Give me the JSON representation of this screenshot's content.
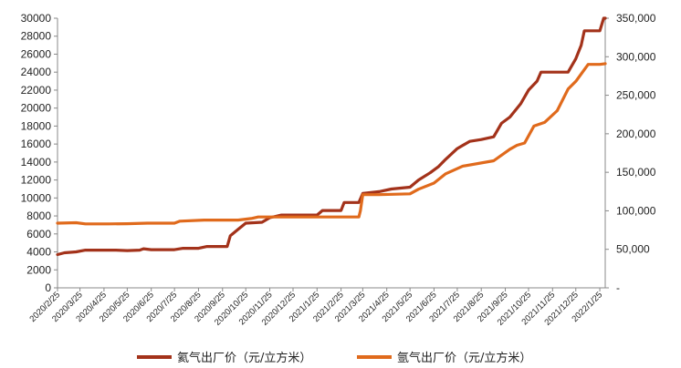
{
  "chart_data": {
    "type": "line",
    "title": "",
    "xlabel": "",
    "ylabel": "",
    "y2label": "",
    "x_start": "2020/2/25",
    "x_end": "2022/2/1",
    "x_ticks": [
      "2020/2/25",
      "2020/3/25",
      "2020/4/25",
      "2020/5/25",
      "2020/6/25",
      "2020/7/25",
      "2020/8/25",
      "2020/9/25",
      "2020/10/25",
      "2020/11/25",
      "2020/12/25",
      "2021/1/25",
      "2021/2/25",
      "2021/3/25",
      "2021/4/25",
      "2021/5/25",
      "2021/6/25",
      "2021/7/25",
      "2021/8/25",
      "2021/9/25",
      "2021/10/25",
      "2021/11/25",
      "2021/12/25",
      "2022/1/25"
    ],
    "ylim": [
      0,
      30000
    ],
    "y_ticks": [
      "0",
      "2000",
      "4000",
      "6000",
      "8000",
      "10000",
      "12000",
      "14000",
      "16000",
      "18000",
      "20000",
      "22000",
      "24000",
      "26000",
      "28000",
      "30000"
    ],
    "y2lim": [
      0,
      350000
    ],
    "y2_ticks": [
      "-",
      "50,000",
      "100,000",
      "150,000",
      "200,000",
      "250,000",
      "300,000",
      "350,000"
    ],
    "grid": false,
    "legend_position": "bottom",
    "series": [
      {
        "name": "氦气出厂价（元/立方米）",
        "axis": "left",
        "color": "#a3321a",
        "points": [
          [
            "2020/2/25",
            3700
          ],
          [
            "2020/3/5",
            3900
          ],
          [
            "2020/3/20",
            4000
          ],
          [
            "2020/4/1",
            4200
          ],
          [
            "2020/5/10",
            4200
          ],
          [
            "2020/5/25",
            4150
          ],
          [
            "2020/6/10",
            4200
          ],
          [
            "2020/6/15",
            4350
          ],
          [
            "2020/6/25",
            4250
          ],
          [
            "2020/7/25",
            4250
          ],
          [
            "2020/8/5",
            4400
          ],
          [
            "2020/8/25",
            4400
          ],
          [
            "2020/9/5",
            4600
          ],
          [
            "2020/10/1",
            4600
          ],
          [
            "2020/10/5",
            5800
          ],
          [
            "2020/10/15",
            6500
          ],
          [
            "2020/10/25",
            7200
          ],
          [
            "2020/11/15",
            7300
          ],
          [
            "2020/11/25",
            7800
          ],
          [
            "2020/12/10",
            8100
          ],
          [
            "2021/1/25",
            8100
          ],
          [
            "2021/2/1",
            8600
          ],
          [
            "2021/2/25",
            8600
          ],
          [
            "2021/3/1",
            9500
          ],
          [
            "2021/3/20",
            9500
          ],
          [
            "2021/3/25",
            10500
          ],
          [
            "2021/4/15",
            10700
          ],
          [
            "2021/5/1",
            11000
          ],
          [
            "2021/5/25",
            11200
          ],
          [
            "2021/6/5",
            12000
          ],
          [
            "2021/6/20",
            12800
          ],
          [
            "2021/7/1",
            13500
          ],
          [
            "2021/7/10",
            14300
          ],
          [
            "2021/7/25",
            15500
          ],
          [
            "2021/8/10",
            16300
          ],
          [
            "2021/8/25",
            16500
          ],
          [
            "2021/9/10",
            16800
          ],
          [
            "2021/9/20",
            18300
          ],
          [
            "2021/10/1",
            19000
          ],
          [
            "2021/10/15",
            20500
          ],
          [
            "2021/10/25",
            22000
          ],
          [
            "2021/11/5",
            23000
          ],
          [
            "2021/11/10",
            24000
          ],
          [
            "2021/12/15",
            24000
          ],
          [
            "2021/12/25",
            25500
          ],
          [
            "2022/1/1",
            27000
          ],
          [
            "2022/1/5",
            28600
          ],
          [
            "2022/1/25",
            28600
          ],
          [
            "2022/1/30",
            30000
          ],
          [
            "2022/2/1",
            30000
          ]
        ]
      },
      {
        "name": "氩气出厂价（元/立方米）",
        "axis": "right",
        "color": "#e06a1c",
        "points": [
          [
            "2020/2/25",
            84000
          ],
          [
            "2020/3/20",
            84500
          ],
          [
            "2020/4/1",
            83000
          ],
          [
            "2020/5/1",
            83000
          ],
          [
            "2020/5/25",
            83300
          ],
          [
            "2020/6/20",
            84000
          ],
          [
            "2020/7/25",
            84000
          ],
          [
            "2020/8/1",
            86500
          ],
          [
            "2020/9/1",
            88000
          ],
          [
            "2020/10/15",
            88000
          ],
          [
            "2020/11/1",
            90000
          ],
          [
            "2020/11/10",
            92000
          ],
          [
            "2020/11/25",
            92000
          ],
          [
            "2020/12/10",
            92000
          ],
          [
            "2021/1/25",
            92000
          ],
          [
            "2021/3/20",
            92000
          ],
          [
            "2021/3/22",
            100000
          ],
          [
            "2021/3/25",
            121000
          ],
          [
            "2021/4/15",
            121000
          ],
          [
            "2021/5/25",
            122000
          ],
          [
            "2021/6/5",
            128000
          ],
          [
            "2021/6/25",
            136000
          ],
          [
            "2021/7/10",
            148000
          ],
          [
            "2021/8/1",
            158000
          ],
          [
            "2021/9/10",
            165000
          ],
          [
            "2021/10/1",
            180000
          ],
          [
            "2021/10/10",
            185000
          ],
          [
            "2021/10/20",
            188000
          ],
          [
            "2021/11/1",
            210000
          ],
          [
            "2021/11/15",
            215000
          ],
          [
            "2021/12/1",
            230000
          ],
          [
            "2021/12/15",
            258000
          ],
          [
            "2021/12/25",
            268000
          ],
          [
            "2022/1/10",
            290000
          ],
          [
            "2022/1/25",
            290000
          ],
          [
            "2022/2/1",
            291000
          ]
        ]
      }
    ]
  }
}
